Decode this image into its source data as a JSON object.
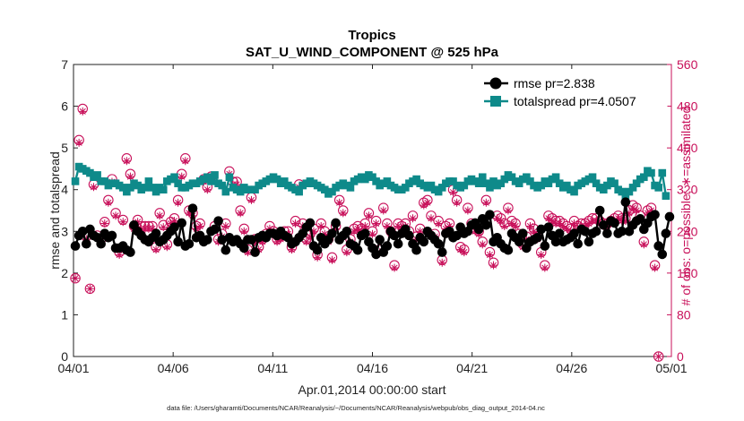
{
  "chart_data": {
    "type": "line",
    "title": "Tropics",
    "subtitle": "SAT_U_WIND_COMPONENT @ 525 hPa",
    "xlabel": "Apr.01,2014 00:00:00 start",
    "ylabel": "rmse and totalspread",
    "y2label": "# of obs: o=possible; ∗=assimilated",
    "footnote": "data file: /Users/gharamti/Documents/NCAR/Reanalysis/~/Documents/NCAR/Reanalysis/webpub/obs_diag_output_2014-04.nc",
    "xticks": [
      "04/01",
      "04/06",
      "04/11",
      "04/16",
      "04/21",
      "04/26",
      "05/01"
    ],
    "xlim_days": [
      0,
      30
    ],
    "ylim": [
      0,
      7
    ],
    "yticks": [
      "0",
      "1",
      "2",
      "3",
      "4",
      "5",
      "6",
      "7"
    ],
    "y2lim": [
      0,
      560
    ],
    "y2ticks": [
      "0",
      "80",
      "160",
      "240",
      "320",
      "400",
      "480",
      "560"
    ],
    "grid": false,
    "legend_position": "top-right",
    "series": [
      {
        "name": "rmse pr=2.838",
        "color": "#000000",
        "marker": "circle",
        "axis": "left",
        "values": [
          2.65,
          2.9,
          3.0,
          2.7,
          3.05,
          2.9,
          2.85,
          2.7,
          2.95,
          2.85,
          2.9,
          2.6,
          2.6,
          2.65,
          2.55,
          2.5,
          3.15,
          3.0,
          2.9,
          2.8,
          2.75,
          2.85,
          2.95,
          2.75,
          2.8,
          2.9,
          3.0,
          3.1,
          2.75,
          3.2,
          2.65,
          2.7,
          3.55,
          2.85,
          2.9,
          2.75,
          2.8,
          3.0,
          3.05,
          3.25,
          2.8,
          2.55,
          2.85,
          2.75,
          2.8,
          2.7,
          2.6,
          2.8,
          2.8,
          2.5,
          2.85,
          2.9,
          2.85,
          2.95,
          2.95,
          2.9,
          3.0,
          2.9,
          2.85,
          2.7,
          2.75,
          2.85,
          2.95,
          3.1,
          3.2,
          2.65,
          2.55,
          2.85,
          2.7,
          2.8,
          2.95,
          3.2,
          2.8,
          2.9,
          3.0,
          2.7,
          2.65,
          2.55,
          2.9,
          2.95,
          2.75,
          2.6,
          2.45,
          2.8,
          2.5,
          2.65,
          3.0,
          2.9,
          2.7,
          2.95,
          3.05,
          2.9,
          2.7,
          2.55,
          2.85,
          2.75,
          3.0,
          2.9,
          2.8,
          2.7,
          2.5,
          2.95,
          3.0,
          2.85,
          2.9,
          3.1,
          2.95,
          3.0,
          3.15,
          3.2,
          3.05,
          3.3,
          3.15,
          3.4,
          2.75,
          2.85,
          2.7,
          2.6,
          2.55,
          2.95,
          2.85,
          2.75,
          2.95,
          2.6,
          2.75,
          2.8,
          2.85,
          3.05,
          2.65,
          3.1,
          2.9,
          2.75,
          2.95,
          2.75,
          2.8,
          2.85,
          2.95,
          2.7,
          3.05,
          3.0,
          2.75,
          2.95,
          3.0,
          3.5,
          3.15,
          2.95,
          3.25,
          3.2,
          2.95,
          3.0,
          3.7,
          3.0,
          3.15,
          3.25,
          3.3,
          3.05,
          3.2,
          3.35,
          3.4,
          2.65,
          2.45,
          2.95,
          3.35
        ]
      },
      {
        "name": "totalspread pr=4.0507",
        "color": "#0e8a8a",
        "marker": "square",
        "axis": "left",
        "values": [
          4.2,
          4.55,
          4.5,
          4.45,
          4.4,
          4.3,
          4.35,
          4.2,
          4.2,
          4.1,
          4.15,
          4.15,
          4.1,
          4.05,
          3.95,
          4.05,
          4.15,
          4.1,
          4.0,
          4.05,
          4.2,
          4.05,
          3.95,
          4.05,
          4.0,
          4.2,
          4.25,
          4.3,
          4.15,
          4.05,
          4.05,
          4.1,
          4.15,
          4.15,
          4.2,
          4.25,
          4.3,
          4.2,
          4.35,
          4.15,
          4.1,
          3.95,
          4.3,
          4.05,
          4.0,
          3.95,
          4.05,
          4.0,
          4.0,
          4.0,
          4.1,
          4.15,
          4.2,
          4.25,
          4.3,
          4.25,
          4.15,
          4.2,
          4.1,
          4.05,
          4.0,
          3.95,
          4.1,
          4.15,
          4.2,
          4.15,
          4.1,
          4.05,
          4.0,
          3.9,
          3.95,
          4.05,
          4.1,
          4.15,
          4.1,
          4.05,
          4.2,
          4.25,
          4.3,
          4.25,
          4.35,
          4.3,
          4.2,
          4.1,
          4.15,
          4.2,
          4.1,
          4.05,
          4.0,
          4.0,
          4.05,
          4.15,
          4.2,
          4.25,
          4.15,
          4.1,
          4.05,
          4.1,
          4.0,
          3.95,
          4.05,
          4.15,
          4.2,
          4.2,
          4.1,
          4.05,
          4.1,
          4.2,
          4.25,
          4.2,
          4.15,
          4.3,
          4.15,
          4.05,
          4.2,
          4.1,
          4.15,
          4.25,
          4.35,
          4.3,
          4.2,
          4.15,
          4.25,
          4.3,
          4.2,
          4.1,
          4.05,
          4.1,
          4.2,
          4.15,
          4.25,
          4.3,
          4.15,
          4.05,
          4.1,
          4.0,
          3.95,
          4.1,
          4.15,
          4.2,
          4.25,
          4.3,
          4.15,
          4.05,
          4.0,
          4.1,
          4.2,
          4.15,
          4.0,
          3.95,
          3.85,
          3.95,
          4.05,
          4.15,
          4.25,
          4.3,
          4.45,
          4.4,
          4.1,
          4.05,
          4.4,
          3.85
        ]
      },
      {
        "name": "possible obs",
        "color": "#c8105a",
        "marker": "open-circle",
        "axis": "right",
        "values": [
          150,
          415,
          475,
          230,
          130,
          330,
          232,
          225,
          258,
          300,
          340,
          275,
          200,
          262,
          380,
          350,
          250,
          262,
          250,
          250,
          250,
          250,
          210,
          275,
          252,
          215,
          258,
          265,
          300,
          350,
          380,
          280,
          275,
          250,
          255,
          340,
          325,
          345,
          250,
          225,
          235,
          255,
          355,
          335,
          335,
          280,
          245,
          205,
          305,
          225,
          210,
          225,
          235,
          250,
          240,
          225,
          230,
          240,
          240,
          210,
          260,
          330,
          255,
          225,
          235,
          245,
          195,
          255,
          240,
          225,
          190,
          250,
          300,
          280,
          205,
          225,
          245,
          250,
          245,
          255,
          275,
          240,
          260,
          205,
          285,
          255,
          240,
          175,
          255,
          250,
          255,
          240,
          270,
          230,
          245,
          295,
          300,
          270,
          235,
          260,
          185,
          250,
          255,
          320,
          300,
          210,
          205,
          285,
          255,
          245,
          240,
          220,
          300,
          200,
          180,
          270,
          265,
          255,
          285,
          260,
          255,
          235,
          215,
          230,
          255,
          245,
          230,
          200,
          175,
          270,
          265,
          260,
          260,
          255,
          250,
          245,
          260,
          250,
          255,
          255,
          260,
          265,
          265,
          260,
          255,
          255,
          260,
          265,
          270,
          265,
          265,
          280,
          290,
          285,
          270,
          220,
          280,
          285,
          175,
          0
        ]
      },
      {
        "name": "assimilated obs",
        "color": "#c8105a",
        "marker": "asterisk",
        "axis": "right",
        "values": [
          150,
          410,
          470,
          225,
          130,
          325,
          230,
          220,
          255,
          295,
          335,
          270,
          195,
          258,
          375,
          345,
          245,
          258,
          245,
          245,
          245,
          245,
          205,
          270,
          248,
          210,
          255,
          260,
          295,
          345,
          375,
          275,
          270,
          245,
          250,
          335,
          320,
          340,
          245,
          220,
          230,
          250,
          350,
          330,
          330,
          275,
          240,
          200,
          300,
          220,
          205,
          220,
          230,
          245,
          235,
          220,
          225,
          235,
          235,
          205,
          255,
          325,
          250,
          220,
          230,
          240,
          190,
          250,
          235,
          220,
          185,
          245,
          295,
          275,
          200,
          220,
          240,
          245,
          240,
          250,
          270,
          235,
          255,
          200,
          280,
          250,
          235,
          170,
          250,
          245,
          250,
          235,
          265,
          225,
          240,
          290,
          295,
          265,
          230,
          255,
          180,
          245,
          250,
          315,
          295,
          205,
          200,
          280,
          250,
          240,
          235,
          215,
          295,
          195,
          175,
          265,
          260,
          250,
          280,
          255,
          250,
          230,
          210,
          225,
          250,
          240,
          225,
          195,
          170,
          265,
          260,
          255,
          255,
          250,
          245,
          240,
          255,
          245,
          250,
          250,
          255,
          260,
          260,
          255,
          250,
          250,
          255,
          260,
          265,
          260,
          260,
          275,
          285,
          280,
          265,
          215,
          275,
          280,
          170,
          0
        ]
      }
    ]
  }
}
